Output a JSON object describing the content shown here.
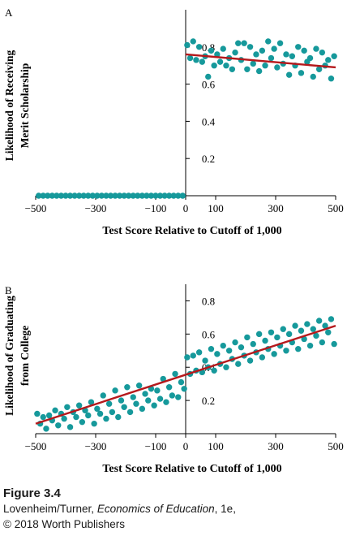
{
  "colors": {
    "dots": "#16999b",
    "fit_line": "#b5191c",
    "axis": "#000000"
  },
  "caption": {
    "figure_label": "Figure 3.4",
    "authors": "Lovenheim/Turner,",
    "book_title": "Economics of Education",
    "edition": ", 1e,",
    "copyright": "© 2018 Worth Publishers"
  },
  "chart_data": [
    {
      "type": "scatter",
      "panel_letter": "A",
      "xlabel": "Test Score Relative to Cutoff of 1,000",
      "ylabel_lines": [
        "Likelihood of Receiving",
        "Merit Scholarship"
      ],
      "xlim": [
        -500,
        500
      ],
      "ylim": [
        0,
        1.0
      ],
      "x_ticks": [
        -500,
        -300,
        -100,
        0,
        100,
        300,
        500
      ],
      "x_tick_labels": [
        "−500",
        "−300",
        "−100",
        "0",
        "100",
        "300",
        "500"
      ],
      "y_ticks": [
        0.2,
        0.4,
        0.6,
        0.8
      ],
      "y_tick_labels": [
        "0.2",
        "0.4",
        "0.6",
        "0.8"
      ],
      "grid": false,
      "points": [
        [
          -490,
          0
        ],
        [
          -475,
          0
        ],
        [
          -460,
          0
        ],
        [
          -445,
          0
        ],
        [
          -430,
          0
        ],
        [
          -415,
          0
        ],
        [
          -400,
          0
        ],
        [
          -385,
          0
        ],
        [
          -370,
          0
        ],
        [
          -355,
          0
        ],
        [
          -340,
          0
        ],
        [
          -325,
          0
        ],
        [
          -310,
          0
        ],
        [
          -295,
          0
        ],
        [
          -280,
          0
        ],
        [
          -265,
          0
        ],
        [
          -250,
          0
        ],
        [
          -235,
          0
        ],
        [
          -220,
          0
        ],
        [
          -205,
          0
        ],
        [
          -190,
          0
        ],
        [
          -175,
          0
        ],
        [
          -160,
          0
        ],
        [
          -145,
          0
        ],
        [
          -130,
          0
        ],
        [
          -115,
          0
        ],
        [
          -100,
          0
        ],
        [
          -85,
          0
        ],
        [
          -70,
          0
        ],
        [
          -55,
          0
        ],
        [
          -40,
          0
        ],
        [
          -25,
          0
        ],
        [
          -10,
          0
        ],
        [
          5,
          0.81
        ],
        [
          15,
          0.74
        ],
        [
          25,
          0.83
        ],
        [
          35,
          0.73
        ],
        [
          45,
          0.8
        ],
        [
          55,
          0.72
        ],
        [
          65,
          0.75
        ],
        [
          75,
          0.64
        ],
        [
          85,
          0.78
        ],
        [
          95,
          0.7
        ],
        [
          105,
          0.76
        ],
        [
          115,
          0.72
        ],
        [
          125,
          0.79
        ],
        [
          135,
          0.7
        ],
        [
          145,
          0.74
        ],
        [
          155,
          0.68
        ],
        [
          165,
          0.77
        ],
        [
          175,
          0.82
        ],
        [
          185,
          0.73
        ],
        [
          195,
          0.82
        ],
        [
          205,
          0.68
        ],
        [
          215,
          0.8
        ],
        [
          225,
          0.71
        ],
        [
          235,
          0.76
        ],
        [
          245,
          0.67
        ],
        [
          255,
          0.78
        ],
        [
          265,
          0.7
        ],
        [
          275,
          0.83
        ],
        [
          285,
          0.74
        ],
        [
          295,
          0.79
        ],
        [
          305,
          0.69
        ],
        [
          315,
          0.82
        ],
        [
          325,
          0.71
        ],
        [
          335,
          0.76
        ],
        [
          345,
          0.65
        ],
        [
          355,
          0.75
        ],
        [
          365,
          0.7
        ],
        [
          375,
          0.8
        ],
        [
          385,
          0.66
        ],
        [
          395,
          0.78
        ],
        [
          405,
          0.72
        ],
        [
          415,
          0.74
        ],
        [
          425,
          0.64
        ],
        [
          435,
          0.79
        ],
        [
          445,
          0.68
        ],
        [
          455,
          0.77
        ],
        [
          465,
          0.7
        ],
        [
          475,
          0.73
        ],
        [
          485,
          0.63
        ],
        [
          495,
          0.75
        ]
      ],
      "fit_lines": [
        {
          "x": [
            0,
            500
          ],
          "y": [
            0.76,
            0.69
          ]
        }
      ]
    },
    {
      "type": "scatter",
      "panel_letter": "B",
      "xlabel": "Test Score Relative to Cutoff of 1,000",
      "ylabel_lines": [
        "Likelihood of Graduating",
        "from College"
      ],
      "xlim": [
        -500,
        500
      ],
      "ylim": [
        0,
        0.9
      ],
      "x_ticks": [
        -500,
        -300,
        -100,
        0,
        100,
        300,
        500
      ],
      "x_tick_labels": [
        "−500",
        "−300",
        "−100",
        "0",
        "100",
        "300",
        "500"
      ],
      "y_ticks": [
        0.2,
        0.4,
        0.6,
        0.8
      ],
      "y_tick_labels": [
        "0.2",
        "0.4",
        "0.6",
        "0.8"
      ],
      "grid": false,
      "points": [
        [
          -495,
          0.12
        ],
        [
          -485,
          0.06
        ],
        [
          -475,
          0.1
        ],
        [
          -465,
          0.03
        ],
        [
          -455,
          0.11
        ],
        [
          -445,
          0.08
        ],
        [
          -435,
          0.14
        ],
        [
          -425,
          0.05
        ],
        [
          -415,
          0.12
        ],
        [
          -405,
          0.09
        ],
        [
          -395,
          0.16
        ],
        [
          -385,
          0.04
        ],
        [
          -375,
          0.13
        ],
        [
          -365,
          0.1
        ],
        [
          -355,
          0.17
        ],
        [
          -345,
          0.07
        ],
        [
          -335,
          0.14
        ],
        [
          -325,
          0.11
        ],
        [
          -315,
          0.19
        ],
        [
          -305,
          0.06
        ],
        [
          -295,
          0.15
        ],
        [
          -285,
          0.12
        ],
        [
          -275,
          0.23
        ],
        [
          -265,
          0.09
        ],
        [
          -255,
          0.18
        ],
        [
          -245,
          0.13
        ],
        [
          -235,
          0.26
        ],
        [
          -225,
          0.1
        ],
        [
          -215,
          0.2
        ],
        [
          -205,
          0.16
        ],
        [
          -195,
          0.28
        ],
        [
          -185,
          0.13
        ],
        [
          -175,
          0.22
        ],
        [
          -165,
          0.18
        ],
        [
          -155,
          0.29
        ],
        [
          -145,
          0.15
        ],
        [
          -135,
          0.24
        ],
        [
          -125,
          0.2
        ],
        [
          -115,
          0.27
        ],
        [
          -105,
          0.17
        ],
        [
          -95,
          0.26
        ],
        [
          -85,
          0.21
        ],
        [
          -75,
          0.33
        ],
        [
          -65,
          0.19
        ],
        [
          -55,
          0.28
        ],
        [
          -45,
          0.23
        ],
        [
          -35,
          0.36
        ],
        [
          -25,
          0.22
        ],
        [
          -15,
          0.31
        ],
        [
          -5,
          0.27
        ],
        [
          5,
          0.46
        ],
        [
          15,
          0.36
        ],
        [
          25,
          0.47
        ],
        [
          35,
          0.38
        ],
        [
          45,
          0.49
        ],
        [
          55,
          0.37
        ],
        [
          65,
          0.44
        ],
        [
          75,
          0.4
        ],
        [
          85,
          0.51
        ],
        [
          95,
          0.38
        ],
        [
          105,
          0.48
        ],
        [
          115,
          0.42
        ],
        [
          125,
          0.53
        ],
        [
          135,
          0.4
        ],
        [
          145,
          0.5
        ],
        [
          155,
          0.45
        ],
        [
          165,
          0.55
        ],
        [
          175,
          0.42
        ],
        [
          185,
          0.52
        ],
        [
          195,
          0.47
        ],
        [
          205,
          0.58
        ],
        [
          215,
          0.44
        ],
        [
          225,
          0.54
        ],
        [
          235,
          0.49
        ],
        [
          245,
          0.6
        ],
        [
          255,
          0.46
        ],
        [
          265,
          0.56
        ],
        [
          275,
          0.51
        ],
        [
          285,
          0.61
        ],
        [
          295,
          0.48
        ],
        [
          305,
          0.58
        ],
        [
          315,
          0.53
        ],
        [
          325,
          0.63
        ],
        [
          335,
          0.5
        ],
        [
          345,
          0.6
        ],
        [
          355,
          0.55
        ],
        [
          365,
          0.65
        ],
        [
          375,
          0.51
        ],
        [
          385,
          0.62
        ],
        [
          395,
          0.57
        ],
        [
          405,
          0.66
        ],
        [
          415,
          0.53
        ],
        [
          425,
          0.63
        ],
        [
          435,
          0.59
        ],
        [
          445,
          0.68
        ],
        [
          455,
          0.55
        ],
        [
          465,
          0.65
        ],
        [
          475,
          0.61
        ],
        [
          485,
          0.69
        ],
        [
          495,
          0.54
        ]
      ],
      "fit_lines": [
        {
          "x": [
            -500,
            500
          ],
          "y": [
            0.06,
            0.65
          ]
        }
      ]
    }
  ]
}
